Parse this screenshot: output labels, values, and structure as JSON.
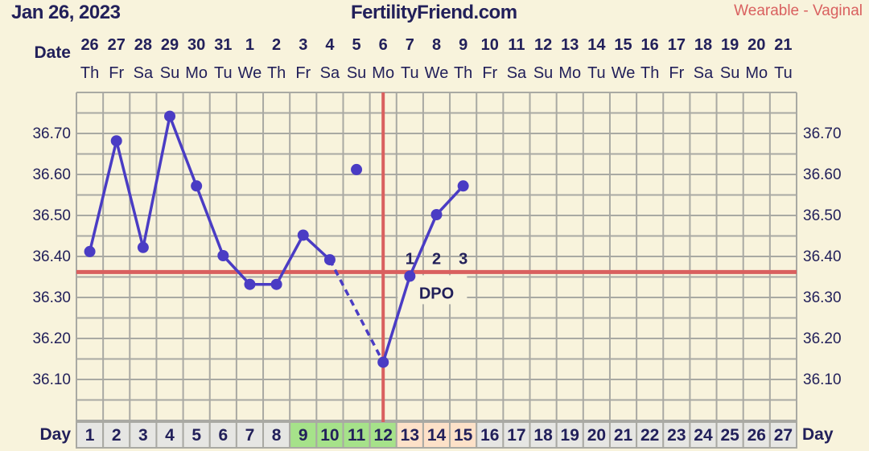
{
  "header": {
    "date": "Jan 26, 2023",
    "site": "FertilityFriend.com",
    "method": "Wearable - Vaginal"
  },
  "chart_data": {
    "type": "line",
    "row_labels": {
      "date": "Date",
      "day": "Day"
    },
    "dates": [
      "26",
      "27",
      "28",
      "29",
      "30",
      "31",
      "1",
      "2",
      "3",
      "4",
      "5",
      "6",
      "7",
      "8",
      "9",
      "10",
      "11",
      "12",
      "13",
      "14",
      "15",
      "16",
      "17",
      "18",
      "19",
      "20",
      "21"
    ],
    "weekdays": [
      "Th",
      "Fr",
      "Sa",
      "Su",
      "Mo",
      "Tu",
      "We",
      "Th",
      "Fr",
      "Sa",
      "Su",
      "Mo",
      "Tu",
      "We",
      "Th",
      "Fr",
      "Sa",
      "Su",
      "Mo",
      "Tu",
      "We",
      "Th",
      "Fr",
      "Sa",
      "Su",
      "Mo",
      "Tu"
    ],
    "cycle_days": [
      1,
      2,
      3,
      4,
      5,
      6,
      7,
      8,
      9,
      10,
      11,
      12,
      13,
      14,
      15,
      16,
      17,
      18,
      19,
      20,
      21,
      22,
      23,
      24,
      25,
      26,
      27
    ],
    "day_cell_colors": {
      "fertile": "#a6e28a",
      "post_ovulation": "#fde1c8",
      "default": "#e6e6e3"
    },
    "fertile_days": [
      9,
      10,
      11,
      12
    ],
    "post_ovulation_days": [
      13,
      14,
      15
    ],
    "temperatures": [
      36.41,
      36.68,
      36.42,
      36.74,
      36.57,
      36.4,
      36.33,
      36.33,
      36.45,
      36.39,
      36.61,
      36.14,
      36.35,
      36.5,
      36.57
    ],
    "discarded_days": [
      11
    ],
    "ylim": [
      36.02,
      36.86
    ],
    "yticks": [
      "36.10",
      "36.20",
      "36.30",
      "36.40",
      "36.50",
      "36.60",
      "36.70"
    ],
    "coverline": 36.36,
    "ovulation_day": 12,
    "dpo_labels": [
      "1",
      "2",
      "3"
    ],
    "dpo_text": "DPO",
    "colors": {
      "line": "#4a3cc4",
      "coverline": "#d9605f",
      "grid": "#a9a9a3",
      "text": "#22205a"
    }
  }
}
